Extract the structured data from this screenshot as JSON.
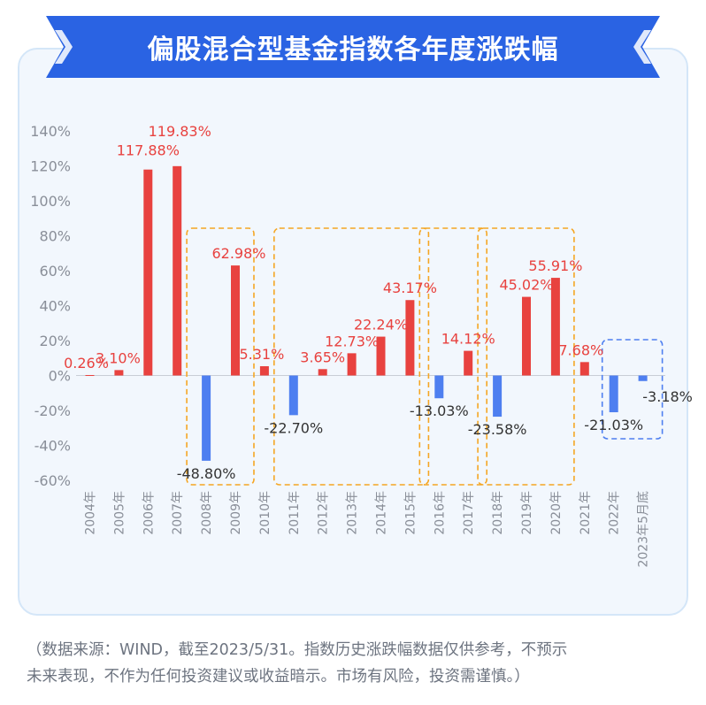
{
  "title": "偏股混合型基金指数各年度涨跌幅",
  "footnote": {
    "line1": "（数据来源：WIND，截至2023/5/31。指数历史涨跌幅数据仅供参考，不预示",
    "line2": "未来表现，不作为任何投资建议或收益暗示。市场有风险，投资需谨慎。）"
  },
  "colors": {
    "positive": "#e8423f",
    "negative": "#4e7ff0",
    "banner": "#2a63e3",
    "highlight_box": "#f5a623",
    "latest_box": "#4e7ff0",
    "positive_label": "#e8423f",
    "negative_label": "#333333",
    "axis_text": "#8a8f99"
  },
  "chart_data": {
    "type": "bar",
    "ylim": [
      -60,
      140
    ],
    "yticks": [
      140,
      120,
      100,
      80,
      60,
      40,
      20,
      0,
      -20,
      -40,
      -60
    ],
    "ytick_labels": [
      "140%",
      "120%",
      "100%",
      "80%",
      "60%",
      "40%",
      "20%",
      "0%",
      "-20%",
      "-40%",
      "-60%"
    ],
    "categories": [
      "2004年",
      "2005年",
      "2006年",
      "2007年",
      "2008年",
      "2009年",
      "2010年",
      "2011年",
      "2012年",
      "2013年",
      "2014年",
      "2015年",
      "2016年",
      "2017年",
      "2018年",
      "2019年",
      "2020年",
      "2021年",
      "2022年",
      "2023年5月底"
    ],
    "values": [
      0.26,
      3.1,
      117.88,
      119.83,
      -48.8,
      62.98,
      5.31,
      -22.7,
      3.65,
      12.73,
      22.24,
      43.17,
      -13.03,
      14.12,
      -23.58,
      45.02,
      55.91,
      7.68,
      -21.03,
      -3.18
    ],
    "value_labels": [
      "0.26%",
      "3.10%",
      "117.88%",
      "119.83%",
      "-48.80%",
      "62.98%",
      "5.31%",
      "-22.70%",
      "3.65%",
      "12.73%",
      "22.24%",
      "43.17%",
      "-13.03%",
      "14.12%",
      "-23.58%",
      "45.02%",
      "55.91%",
      "7.68%",
      "-21.03%",
      "-3.18%"
    ],
    "highlight_groups": [
      {
        "from": "2008年",
        "to": "2009年",
        "style": "orange-dashed"
      },
      {
        "from": "2011年",
        "to": "2015年",
        "style": "orange-dashed"
      },
      {
        "from": "2016年",
        "to": "2017年",
        "style": "orange-dashed"
      },
      {
        "from": "2018年",
        "to": "2020年",
        "style": "orange-dashed"
      },
      {
        "from": "2022年",
        "to": "2023年5月底",
        "style": "blue-dashed"
      }
    ]
  }
}
